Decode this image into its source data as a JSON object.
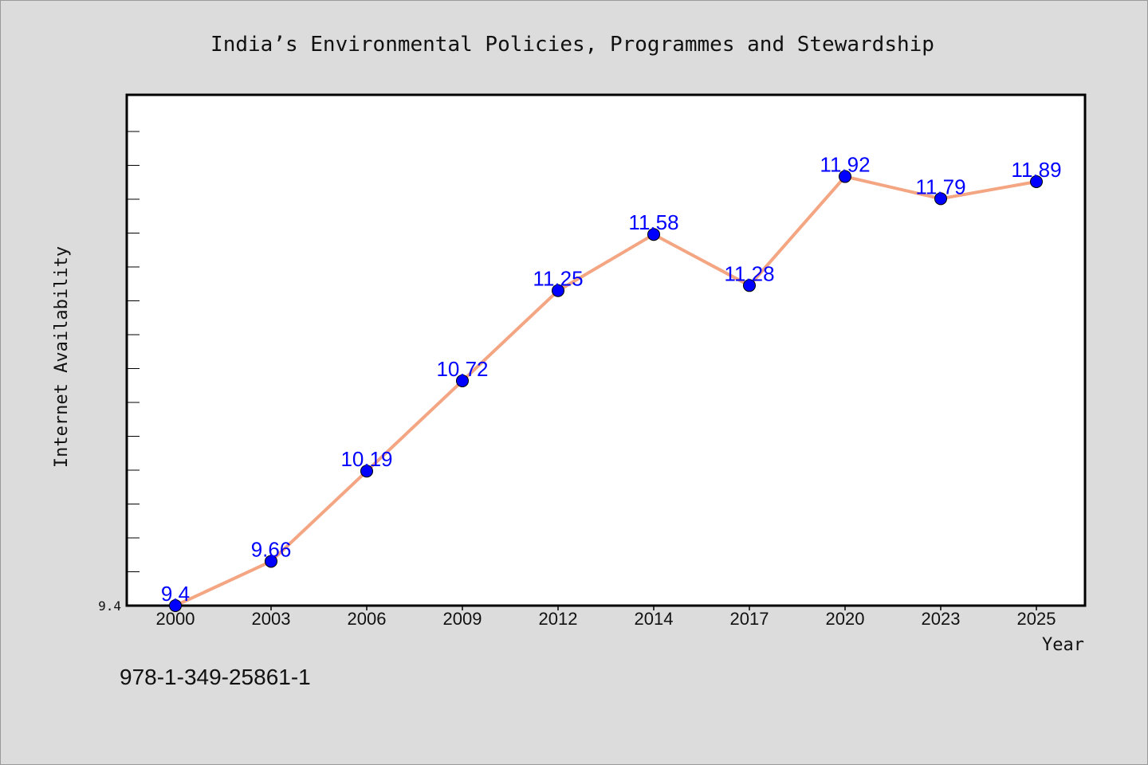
{
  "chart_data": {
    "type": "line",
    "title": "India’s Environmental Policies, Programmes and Stewardship",
    "xlabel": "Year",
    "ylabel": "Internet Availability",
    "categories": [
      "2000",
      "2003",
      "2006",
      "2009",
      "2012",
      "2014",
      "2017",
      "2020",
      "2023",
      "2025"
    ],
    "series": [
      {
        "values": [
          9.4,
          9.66,
          10.19,
          10.72,
          11.25,
          11.58,
          11.28,
          11.92,
          11.79,
          11.89
        ],
        "labels": [
          "9.4",
          "9.66",
          "10.19",
          "10.72",
          "11.25",
          "11.58",
          "11.28",
          "11.92",
          "11.79",
          "11.89"
        ],
        "line_color": "#f4a582",
        "marker_color": "#0000ff"
      }
    ],
    "yticks": [
      {
        "value": 9.4,
        "label": "9.4"
      }
    ],
    "ylim": [
      9.4,
      12.4
    ],
    "grid": false,
    "legend": "none"
  },
  "footer": {
    "isbn": "978-1-349-25861-1"
  }
}
